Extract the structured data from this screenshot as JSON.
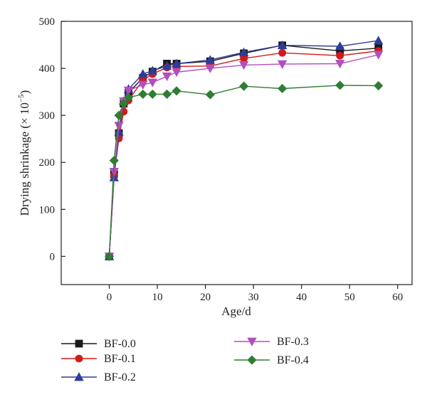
{
  "chart_data": {
    "type": "line",
    "title": "",
    "xlabel": "Age/d",
    "ylabel": "Drying shrinkage (× 10",
    "ylabel_exponent": "−5",
    "ylabel_close": ")",
    "xlim": [
      -10,
      63
    ],
    "ylim": [
      -60,
      500
    ],
    "x_ticks": [
      0,
      10,
      20,
      30,
      40,
      50,
      60
    ],
    "y_ticks": [
      0,
      100,
      200,
      300,
      400,
      500
    ],
    "grid": false,
    "legend_position": "bottom",
    "series": [
      {
        "name": "BF-0.0",
        "color": "#1a1a1a",
        "marker": "square",
        "x": [
          0,
          1,
          2,
          3,
          4,
          7,
          9,
          12,
          14,
          21,
          28,
          36,
          48,
          56
        ],
        "y": [
          0,
          175,
          262,
          325,
          348,
          380,
          393,
          410,
          410,
          415,
          432,
          449,
          437,
          443
        ]
      },
      {
        "name": "BF-0.1",
        "color": "#d11a1a",
        "marker": "circle",
        "x": [
          0,
          1,
          2,
          3,
          4,
          7,
          9,
          12,
          14,
          21,
          28,
          36,
          48,
          56
        ],
        "y": [
          0,
          172,
          251,
          308,
          332,
          375,
          388,
          402,
          404,
          405,
          421,
          433,
          427,
          437
        ]
      },
      {
        "name": "BF-0.2",
        "color": "#2e3d9a",
        "marker": "triangle-up",
        "x": [
          0,
          1,
          2,
          3,
          4,
          7,
          9,
          12,
          14,
          21,
          28,
          36,
          48,
          56
        ],
        "y": [
          0,
          168,
          265,
          330,
          356,
          388,
          395,
          405,
          410,
          418,
          434,
          449,
          447,
          459
        ]
      },
      {
        "name": "BF-0.3",
        "color": "#b24fbf",
        "marker": "triangle-down",
        "x": [
          0,
          1,
          2,
          3,
          4,
          7,
          9,
          12,
          14,
          21,
          28,
          36,
          48,
          56
        ],
        "y": [
          0,
          180,
          278,
          330,
          353,
          365,
          370,
          383,
          392,
          400,
          407,
          409,
          410,
          429
        ]
      },
      {
        "name": "BF-0.4",
        "color": "#2f7d32",
        "marker": "diamond",
        "x": [
          0,
          1,
          2,
          3,
          4,
          7,
          9,
          12,
          14,
          21,
          28,
          36,
          48,
          56
        ],
        "y": [
          0,
          204,
          300,
          325,
          338,
          345,
          345,
          345,
          352,
          344,
          362,
          357,
          364,
          363
        ]
      }
    ]
  }
}
